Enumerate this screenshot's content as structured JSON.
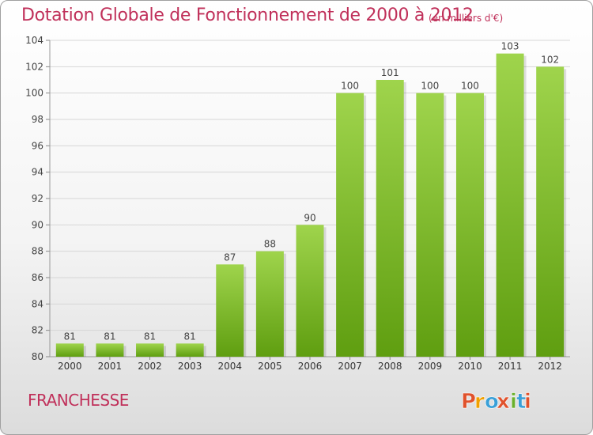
{
  "header": {
    "title": "Dotation Globale de Fonctionnement de 2000 à 2012",
    "unit": "(en milliers d'€)"
  },
  "footer": {
    "commune": "FRANCHESSE",
    "logo_text": "Proxiti"
  },
  "colors": {
    "title": "#c0305a",
    "bar_light": "#9fd44c",
    "bar_dark": "#5f9e10",
    "logo_letters": [
      "#e0522c",
      "#f0a000",
      "#3aa0d8",
      "#e0522c",
      "#6ab02c",
      "#3aa0d8",
      "#e0522c"
    ]
  },
  "chart_data": {
    "type": "bar",
    "categories": [
      "2000",
      "2001",
      "2002",
      "2003",
      "2004",
      "2005",
      "2006",
      "2007",
      "2008",
      "2009",
      "2010",
      "2011",
      "2012"
    ],
    "values": [
      81,
      81,
      81,
      81,
      87,
      88,
      90,
      100,
      101,
      100,
      100,
      103,
      102
    ],
    "title": "Dotation Globale de Fonctionnement de 2000 à 2012",
    "subtitle": "(en milliers d'€)",
    "xlabel": "",
    "ylabel": "",
    "ylim": [
      80,
      104
    ],
    "yticks": [
      80,
      82,
      84,
      86,
      88,
      90,
      92,
      94,
      96,
      98,
      100,
      102,
      104
    ],
    "grid": true,
    "legend": "none"
  }
}
